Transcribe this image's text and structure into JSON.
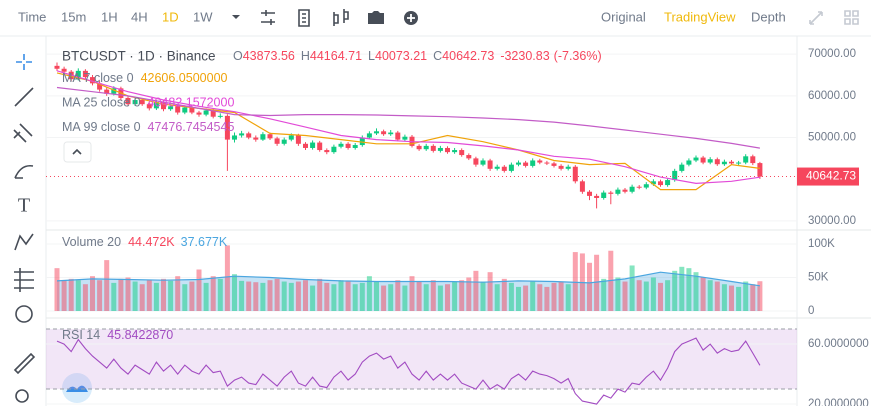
{
  "toolbar": {
    "intervals": [
      "Time",
      "15m",
      "1H",
      "4H",
      "1D",
      "1W"
    ],
    "active_interval": 4,
    "views": [
      "Original",
      "TradingView",
      "Depth"
    ],
    "active_view": 1
  },
  "chart_data": [
    {
      "type": "candlestick",
      "title": "BTCUSDT · 1D · Binance",
      "ohlc_keys": [
        "O",
        "H",
        "L",
        "C"
      ],
      "change": -3230.83,
      "change_pct_label": "(-7.36%)",
      "up_color": "#0ecb81",
      "down_color": "#f6465d",
      "ylim": [
        28300,
        73400
      ],
      "yticks": [
        {
          "value": 30000,
          "label": "30000.00"
        },
        {
          "value": 50000,
          "label": "50000.00"
        },
        {
          "value": 60000,
          "label": "60000.00"
        },
        {
          "value": 70000,
          "label": "70000.00"
        }
      ],
      "grid": true,
      "candles": [
        [
          67200,
          68000,
          66000,
          66500
        ],
        [
          66500,
          67000,
          65200,
          65800
        ],
        [
          65800,
          66200,
          63500,
          64000
        ],
        [
          64000,
          66600,
          63700,
          66000
        ],
        [
          66000,
          66400,
          64000,
          64500
        ],
        [
          64500,
          65000,
          62500,
          63000
        ],
        [
          63000,
          63600,
          61000,
          61500
        ],
        [
          61500,
          62000,
          60000,
          60500
        ],
        [
          60500,
          62300,
          60100,
          61800
        ],
        [
          61800,
          62200,
          59000,
          59500
        ],
        [
          59500,
          60000,
          57500,
          58000
        ],
        [
          58000,
          59600,
          57600,
          59000
        ],
        [
          59000,
          59400,
          57600,
          58000
        ],
        [
          58000,
          58400,
          56500,
          57000
        ],
        [
          57000,
          59000,
          56600,
          58500
        ],
        [
          58500,
          58900,
          56300,
          56800
        ],
        [
          56800,
          58000,
          56400,
          57500
        ],
        [
          57500,
          57900,
          55500,
          56000
        ],
        [
          56000,
          57700,
          55600,
          57200
        ],
        [
          57200,
          57600,
          55600,
          56000
        ],
        [
          56000,
          56400,
          55000,
          55500
        ],
        [
          55500,
          57000,
          55100,
          56500
        ],
        [
          56500,
          56900,
          54600,
          55000
        ],
        [
          55000,
          55800,
          54600,
          55200
        ],
        [
          55200,
          55600,
          42000,
          49500
        ],
        [
          49500,
          51200,
          48800,
          50500
        ],
        [
          50500,
          51600,
          50000,
          51000
        ],
        [
          51000,
          51400,
          49600,
          50000
        ],
        [
          50000,
          50500,
          49000,
          49500
        ],
        [
          49500,
          51300,
          49200,
          50800
        ],
        [
          50800,
          51200,
          49400,
          49800
        ],
        [
          49800,
          50200,
          48000,
          48500
        ],
        [
          48500,
          50000,
          48100,
          49500
        ],
        [
          49500,
          51000,
          49100,
          50500
        ],
        [
          50500,
          50900,
          48000,
          48500
        ],
        [
          48500,
          48900,
          47000,
          47500
        ],
        [
          47500,
          49300,
          47100,
          48800
        ],
        [
          48800,
          49200,
          46600,
          47000
        ],
        [
          47000,
          47400,
          46000,
          46500
        ],
        [
          46500,
          48300,
          46100,
          47800
        ],
        [
          47800,
          49000,
          47400,
          48500
        ],
        [
          48500,
          48900,
          47100,
          47500
        ],
        [
          47500,
          48700,
          47100,
          48200
        ],
        [
          48200,
          50500,
          47800,
          50000
        ],
        [
          50000,
          51500,
          49600,
          51000
        ],
        [
          51000,
          52200,
          50600,
          51500
        ],
        [
          51500,
          51900,
          50400,
          50800
        ],
        [
          50800,
          51800,
          50400,
          51200
        ],
        [
          51200,
          51600,
          49100,
          49500
        ],
        [
          49500,
          50700,
          49100,
          50200
        ],
        [
          50200,
          50600,
          47600,
          48000
        ],
        [
          48000,
          48400,
          46800,
          47200
        ],
        [
          47200,
          48500,
          46800,
          48000
        ],
        [
          48000,
          48400,
          46400,
          46800
        ],
        [
          46800,
          48000,
          46400,
          47500
        ],
        [
          47500,
          47900,
          46100,
          46500
        ],
        [
          46500,
          47500,
          46100,
          47000
        ],
        [
          47000,
          47400,
          45400,
          45800
        ],
        [
          45800,
          46200,
          44600,
          45000
        ],
        [
          45000,
          45400,
          43000,
          43500
        ],
        [
          43500,
          45000,
          43100,
          44500
        ],
        [
          44500,
          44900,
          42000,
          42500
        ],
        [
          42500,
          43500,
          42100,
          43000
        ],
        [
          43000,
          43400,
          41600,
          42000
        ],
        [
          42000,
          44000,
          41600,
          43500
        ],
        [
          43500,
          44500,
          43100,
          44000
        ],
        [
          44000,
          44400,
          42800,
          43200
        ],
        [
          43200,
          45000,
          42800,
          44500
        ],
        [
          44500,
          44900,
          43600,
          44000
        ],
        [
          44000,
          44400,
          43400,
          43800
        ],
        [
          43800,
          44200,
          42800,
          43200
        ],
        [
          43200,
          43600,
          42100,
          42500
        ],
        [
          42500,
          43500,
          42100,
          43000
        ],
        [
          43000,
          43400,
          39000,
          39500
        ],
        [
          39500,
          39900,
          36500,
          37000
        ],
        [
          37000,
          37400,
          35000,
          36000
        ],
        [
          36000,
          36500,
          33000,
          35500
        ],
        [
          35500,
          37300,
          35100,
          36800
        ],
        [
          36800,
          37200,
          34000,
          36500
        ],
        [
          36500,
          38000,
          36100,
          37500
        ],
        [
          37500,
          37900,
          36600,
          37000
        ],
        [
          37000,
          38700,
          36600,
          38200
        ],
        [
          38200,
          38600,
          37600,
          38000
        ],
        [
          38000,
          39300,
          37600,
          38800
        ],
        [
          38800,
          40000,
          38400,
          39500
        ],
        [
          39500,
          39900,
          38200,
          38600
        ],
        [
          38600,
          40300,
          38200,
          39800
        ],
        [
          39800,
          42500,
          39400,
          42000
        ],
        [
          42000,
          44000,
          41600,
          43500
        ],
        [
          43500,
          45000,
          43100,
          44500
        ],
        [
          44500,
          45700,
          44100,
          45200
        ],
        [
          45200,
          45600,
          43600,
          44000
        ],
        [
          44000,
          45300,
          43600,
          44800
        ],
        [
          44800,
          45200,
          43200,
          43600
        ],
        [
          43600,
          44700,
          43200,
          44200
        ],
        [
          44200,
          44600,
          43400,
          43800
        ],
        [
          43800,
          44400,
          43400,
          44000
        ],
        [
          44000,
          46000,
          43600,
          45500
        ],
        [
          45500,
          45900,
          43400,
          43873.56
        ],
        [
          43873.56,
          44164.71,
          40073.21,
          40642.73
        ]
      ],
      "series": [
        {
          "name": "MA 7 close 0",
          "color": "#f0a30a",
          "value_label": "42606.0500000",
          "x": [
            0,
            5,
            10,
            15,
            20,
            25,
            30,
            35,
            40,
            45,
            50,
            55,
            60,
            65,
            70,
            75,
            80,
            85,
            90,
            95,
            99
          ],
          "values": [
            65500,
            63500,
            60000,
            58000,
            57000,
            56000,
            51000,
            50500,
            49500,
            48500,
            48500,
            50500,
            49000,
            47000,
            44500,
            43500,
            43800,
            37500,
            37500,
            43500,
            42606.05
          ]
        },
        {
          "name": "MA 25 close 0",
          "color": "#e24bd8",
          "value_label": "40482.1572000",
          "x": [
            0,
            5,
            10,
            15,
            20,
            25,
            30,
            35,
            40,
            45,
            50,
            55,
            60,
            65,
            70,
            75,
            80,
            85,
            90,
            95,
            99
          ],
          "values": [
            66000,
            63500,
            61000,
            59000,
            57500,
            56200,
            54500,
            52500,
            50500,
            49500,
            49000,
            48800,
            48000,
            47000,
            45500,
            44800,
            43000,
            40500,
            39000,
            39500,
            40482.1572
          ]
        },
        {
          "name": "MA 99 close 0",
          "color": "#c35cc7",
          "value_label": "47476.7454545",
          "x": [
            0,
            5,
            10,
            15,
            20,
            25,
            30,
            35,
            40,
            45,
            50,
            55,
            60,
            65,
            70,
            75,
            80,
            85,
            90,
            95,
            99
          ],
          "values": [
            62000,
            61000,
            60000,
            58500,
            57000,
            55500,
            55300,
            55500,
            55500,
            55400,
            55200,
            55000,
            54700,
            54300,
            53700,
            52800,
            51800,
            50800,
            49800,
            48600,
            47476.7454545
          ]
        }
      ]
    },
    {
      "type": "bar",
      "title": "Volume 20",
      "ylim": [
        0,
        118000
      ],
      "yticks": [
        {
          "value": 100000,
          "label": "100K"
        },
        {
          "value": 50000,
          "label": "50K"
        },
        0
      ],
      "value_label": "44.472K",
      "values": [
        64000,
        45000,
        48000,
        46000,
        40000,
        52000,
        46000,
        76000,
        42000,
        48000,
        50000,
        44000,
        40000,
        46000,
        42000,
        48000,
        45000,
        52000,
        40000,
        44000,
        62000,
        42000,
        52000,
        48000,
        98000,
        55000,
        45000,
        44000,
        43000,
        42000,
        46000,
        48000,
        44000,
        42000,
        44000,
        46000,
        38000,
        48000,
        42000,
        40000,
        46000,
        44000,
        40000,
        42000,
        52000,
        44000,
        38000,
        40000,
        46000,
        38000,
        52000,
        44000,
        40000,
        46000,
        38000,
        40000,
        44000,
        46000,
        50000,
        60000,
        44000,
        58000,
        40000,
        48000,
        42000,
        36000,
        38000,
        44000,
        40000,
        36000,
        42000,
        44000,
        40000,
        88000,
        86000,
        72000,
        84000,
        48000,
        90000,
        50000,
        44000,
        68000,
        46000,
        44000,
        50000,
        42000,
        46000,
        60000,
        66000,
        64000,
        58000,
        50000,
        46000,
        44000,
        40000,
        38000,
        36000,
        44000,
        40000,
        44472
      ],
      "ma": {
        "color": "#4aa6e0",
        "value_label": "37.677K",
        "x": [
          0,
          5,
          10,
          15,
          20,
          25,
          30,
          35,
          40,
          45,
          50,
          55,
          60,
          65,
          70,
          75,
          80,
          85,
          90,
          95,
          99
        ],
        "values": [
          45000,
          48000,
          47000,
          46000,
          47000,
          52000,
          50000,
          47000,
          45000,
          44000,
          44000,
          44000,
          43000,
          45000,
          44000,
          42000,
          48000,
          58000,
          52000,
          44000,
          37677
        ]
      }
    },
    {
      "type": "line",
      "title": "RSI 14",
      "color": "#a24cc2",
      "value_label": "45.8422870",
      "ylim": [
        18.7,
        74.7
      ],
      "yticks": [
        {
          "value": 60,
          "label": "60.0000000"
        },
        {
          "value": 20,
          "label": "20.0000000"
        }
      ],
      "bands": [
        70,
        30
      ],
      "values": [
        62,
        60,
        55,
        63,
        57,
        52,
        48,
        44,
        50,
        44,
        40,
        46,
        43,
        40,
        48,
        42,
        46,
        40,
        46,
        42,
        40,
        46,
        41,
        42,
        32,
        36,
        38,
        34,
        33,
        40,
        36,
        32,
        38,
        42,
        34,
        32,
        38,
        32,
        31,
        38,
        42,
        36,
        40,
        48,
        52,
        54,
        50,
        52,
        44,
        48,
        40,
        36,
        42,
        36,
        40,
        36,
        40,
        34,
        32,
        30,
        36,
        30,
        33,
        30,
        37,
        40,
        36,
        42,
        40,
        39,
        37,
        34,
        37,
        27,
        22,
        21,
        20,
        26,
        24,
        30,
        28,
        34,
        33,
        38,
        42,
        36,
        44,
        55,
        60,
        62,
        64,
        56,
        60,
        54,
        57,
        55,
        56,
        62,
        54,
        45.842287
      ]
    }
  ]
}
